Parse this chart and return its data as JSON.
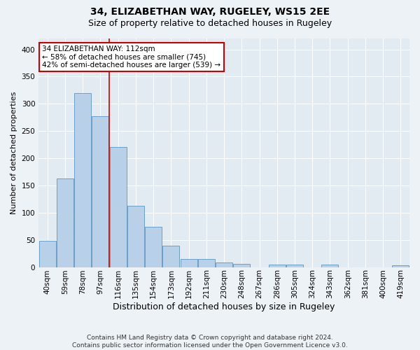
{
  "title1": "34, ELIZABETHAN WAY, RUGELEY, WS15 2EE",
  "title2": "Size of property relative to detached houses in Rugeley",
  "xlabel": "Distribution of detached houses by size in Rugeley",
  "ylabel": "Number of detached properties",
  "footer": "Contains HM Land Registry data © Crown copyright and database right 2024.\nContains public sector information licensed under the Open Government Licence v3.0.",
  "bin_labels": [
    "40sqm",
    "59sqm",
    "78sqm",
    "97sqm",
    "116sqm",
    "135sqm",
    "154sqm",
    "173sqm",
    "192sqm",
    "211sqm",
    "230sqm",
    "248sqm",
    "267sqm",
    "286sqm",
    "305sqm",
    "324sqm",
    "343sqm",
    "362sqm",
    "381sqm",
    "400sqm",
    "419sqm"
  ],
  "bar_values": [
    48,
    163,
    320,
    277,
    220,
    113,
    74,
    39,
    15,
    15,
    9,
    6,
    0,
    4,
    4,
    0,
    4,
    0,
    0,
    0,
    3
  ],
  "bar_color": "#b8d0e8",
  "bar_edge_color": "#6aa0c8",
  "red_line_x": 3.5,
  "highlight_label": "34 ELIZABETHAN WAY: 112sqm",
  "highlight_line1": "← 58% of detached houses are smaller (745)",
  "highlight_line2": "42% of semi-detached houses are larger (539) →",
  "red_line_color": "#cc0000",
  "annotation_box_edgecolor": "#cc0000",
  "ylim": [
    0,
    420
  ],
  "yticks": [
    0,
    50,
    100,
    150,
    200,
    250,
    300,
    350,
    400
  ],
  "background_color": "#edf2f7",
  "plot_bg_color": "#e2eaf2",
  "grid_color": "#ffffff",
  "title1_fontsize": 10,
  "title2_fontsize": 9,
  "xlabel_fontsize": 9,
  "ylabel_fontsize": 8,
  "tick_fontsize": 7.5,
  "footer_fontsize": 6.5,
  "annotation_fontsize": 7.5
}
